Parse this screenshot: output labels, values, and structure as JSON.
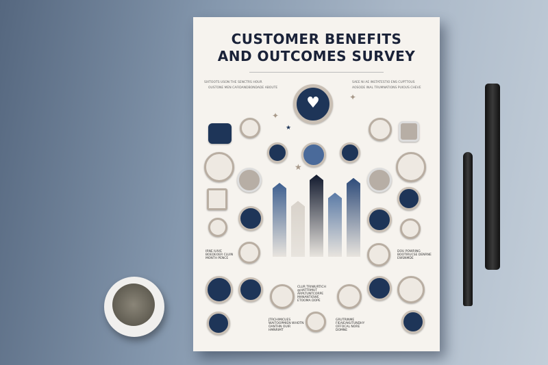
{
  "poster": {
    "title_line1": "CUSTOMER BENEFITS",
    "title_line2": "AND OUTCOMES SURVEY",
    "subtext_left": [
      "SIXTOOTS USON THE SENCTRS HOUR",
      "OUSTONE MEN CAFIDANDBONDADE ABOUTE"
    ],
    "subtext_right": [
      "SAEE NI AE INSTATESTIO ENS CUPTTOUS",
      "AOSODE INAL TRUMNATIONS PUIOUS CHEVE"
    ],
    "left_caption": [
      "IRNE IUIVE",
      "BOEDEOER CLUIN",
      "MONTH PENCE"
    ],
    "right_caption": [
      "DOU POWRING",
      "BOOTIRUCSE DENRNE",
      "EWSNMDE"
    ],
    "center_caption": [
      "CLUR TRINIURTICH",
      "@HATTRMUT",
      "ARPLTUNTCORPE",
      "MANANTIOWE",
      "ETOOMA DOPE"
    ],
    "bottom_caption_left": [
      "JTRCHIMICUES",
      "WAITOOPMIEN WHOTN",
      "OANTHN OUIR",
      "HMNRIMT"
    ],
    "bottom_caption_right": [
      "GRUTRINME",
      "FIEAIEAKUTUNDHY",
      "OFFOCAL NORE",
      "DOMNE"
    ]
  },
  "colors": {
    "navy": "#1e3558",
    "dark": "#1a2238",
    "paper": "#f6f3ee",
    "blue": "#4a6a9a"
  },
  "chart_data": {
    "type": "bar",
    "values": [
      90,
      68,
      100,
      78,
      96
    ],
    "colors": [
      "#3e5f8f",
      "#d8d2ca",
      "#121a2e",
      "#5a7aa6",
      "#2f4c7a"
    ]
  }
}
